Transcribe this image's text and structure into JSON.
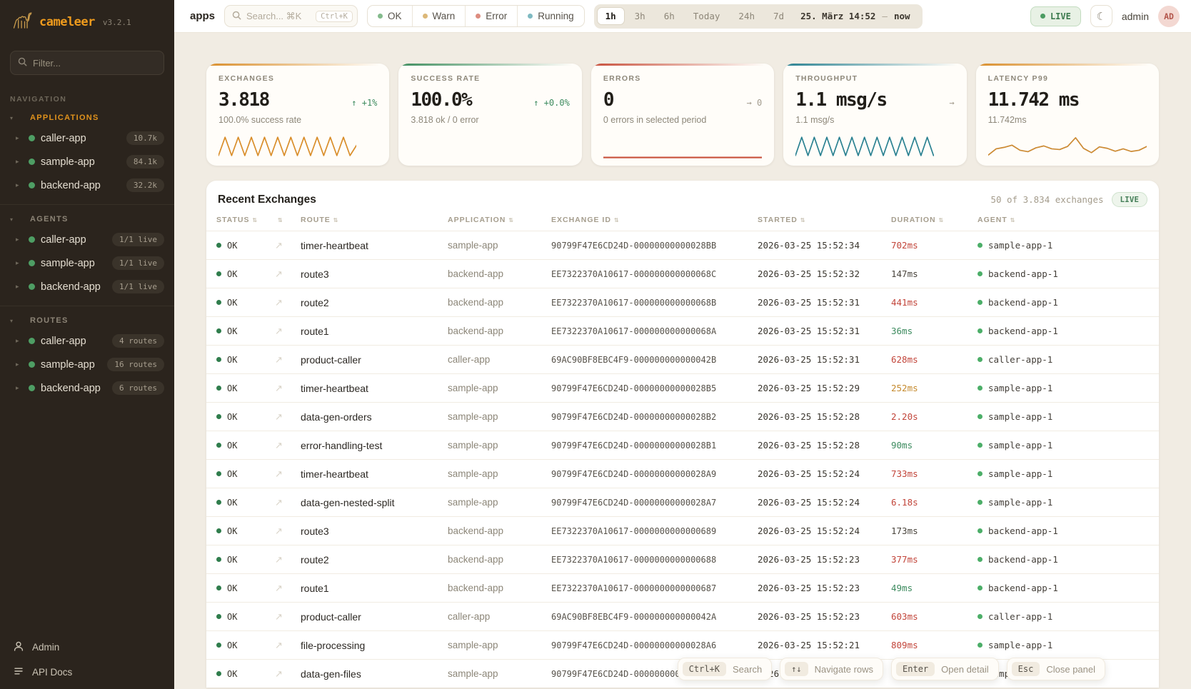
{
  "app": {
    "name": "cameleer",
    "version": "v3.2.1"
  },
  "sidebar": {
    "filter_placeholder": "Filter...",
    "nav_label": "NAVIGATION",
    "sections": [
      {
        "label": "APPLICATIONS",
        "accent": true,
        "items": [
          {
            "name": "caller-app",
            "badge": "10.7k"
          },
          {
            "name": "sample-app",
            "badge": "84.1k"
          },
          {
            "name": "backend-app",
            "badge": "32.2k"
          }
        ]
      },
      {
        "label": "AGENTS",
        "accent": false,
        "items": [
          {
            "name": "caller-app",
            "badge": "1/1 live"
          },
          {
            "name": "sample-app",
            "badge": "1/1 live"
          },
          {
            "name": "backend-app",
            "badge": "1/1 live"
          }
        ]
      },
      {
        "label": "ROUTES",
        "accent": false,
        "items": [
          {
            "name": "caller-app",
            "badge": "4 routes"
          },
          {
            "name": "sample-app",
            "badge": "16 routes"
          },
          {
            "name": "backend-app",
            "badge": "6 routes"
          }
        ]
      }
    ],
    "footer": [
      {
        "label": "Admin",
        "icon": "user-icon"
      },
      {
        "label": "API Docs",
        "icon": "docs-icon"
      }
    ]
  },
  "topbar": {
    "page_label": "apps",
    "search_placeholder": "Search... ⌘K",
    "search_kbd": "Ctrl+K",
    "status_filters": [
      {
        "label": "OK",
        "color": "#84bb8d"
      },
      {
        "label": "Warn",
        "color": "#dcb878"
      },
      {
        "label": "Error",
        "color": "#dd8d80"
      },
      {
        "label": "Running",
        "color": "#7fbac2"
      }
    ],
    "time_ranges": [
      {
        "label": "1h",
        "active": true
      },
      {
        "label": "3h",
        "active": false
      },
      {
        "label": "6h",
        "active": false
      },
      {
        "label": "Today",
        "active": false
      },
      {
        "label": "24h",
        "active": false
      },
      {
        "label": "7d",
        "active": false
      }
    ],
    "date_range": {
      "from": "25. März 14:52",
      "separator": "—",
      "to": "now"
    },
    "live_label": "LIVE",
    "moon_glyph": "☾",
    "user": "admin",
    "avatar": "AD"
  },
  "cards": [
    {
      "label": "EXCHANGES",
      "value": "3.818",
      "delta": "↑ +1%",
      "delta_color": "#3d8b5f",
      "subtitle": "100.0% success rate",
      "accent": "#d98e2b",
      "spark": {
        "color": "#d98e2b",
        "width": 1.7,
        "values": [
          12,
          88,
          12,
          88,
          12,
          88,
          12,
          88,
          12,
          88,
          12,
          88,
          12,
          88,
          12,
          88,
          12,
          88,
          12,
          88,
          12,
          55
        ]
      }
    },
    {
      "label": "SUCCESS RATE",
      "value": "100.0%",
      "delta": "↑ +0.0%",
      "delta_color": "#3d8b5f",
      "subtitle": "3.818 ok / 0 error",
      "accent": "#3f8e5f",
      "spark": null
    },
    {
      "label": "ERRORS",
      "value": "0",
      "delta": "→ 0",
      "delta_color": "#a39c8e",
      "subtitle": "0 errors in selected period",
      "accent": "#c8503c",
      "spark": {
        "color": "#c8503c",
        "width": 2.2,
        "values": [
          4,
          4
        ]
      }
    },
    {
      "label": "THROUGHPUT",
      "value": "1.1 msg/s",
      "delta": "→",
      "delta_color": "#a39c8e",
      "subtitle": "1.1 msg/s",
      "accent": "#2a8191",
      "spark": {
        "color": "#2a8191",
        "width": 1.7,
        "values": [
          12,
          88,
          12,
          88,
          12,
          88,
          12,
          88,
          12,
          88,
          12,
          88,
          12,
          88,
          12,
          88,
          12,
          88,
          12,
          88,
          12,
          88,
          12
        ]
      }
    },
    {
      "label": "LATENCY P99",
      "value": "11.742 ms",
      "delta": "",
      "delta_color": "#a39c8e",
      "subtitle": "11.742ms",
      "accent": "#d98e2b",
      "spark": {
        "color": "#cc8a33",
        "width": 1.7,
        "values": [
          14,
          40,
          46,
          55,
          34,
          28,
          44,
          52,
          40,
          37,
          50,
          86,
          42,
          24,
          48,
          42,
          30,
          40,
          29,
          34,
          50
        ]
      }
    }
  ],
  "table": {
    "title": "Recent Exchanges",
    "summary": "50 of 3.834 exchanges",
    "live_label": "LIVE",
    "columns": [
      "STATUS",
      "",
      "ROUTE",
      "APPLICATION",
      "EXCHANGE ID",
      "STARTED",
      "DURATION",
      "AGENT"
    ],
    "duration_colors": {
      "red": "#c2453a",
      "amber": "#c58a2e",
      "green": "#3d8b5f",
      "default": "#4a453d"
    },
    "rows": [
      {
        "status": "OK",
        "route": "timer-heartbeat",
        "application": "sample-app",
        "exchange_id": "90799F47E6CD24D-00000000000028BB",
        "started": "2026-03-25 15:52:34",
        "duration": "702ms",
        "duration_color": "red",
        "agent": "sample-app-1"
      },
      {
        "status": "OK",
        "route": "route3",
        "application": "backend-app",
        "exchange_id": "EE7322370A10617-000000000000068C",
        "started": "2026-03-25 15:52:32",
        "duration": "147ms",
        "duration_color": "default",
        "agent": "backend-app-1"
      },
      {
        "status": "OK",
        "route": "route2",
        "application": "backend-app",
        "exchange_id": "EE7322370A10617-000000000000068B",
        "started": "2026-03-25 15:52:31",
        "duration": "441ms",
        "duration_color": "red",
        "agent": "backend-app-1"
      },
      {
        "status": "OK",
        "route": "route1",
        "application": "backend-app",
        "exchange_id": "EE7322370A10617-000000000000068A",
        "started": "2026-03-25 15:52:31",
        "duration": "36ms",
        "duration_color": "green",
        "agent": "backend-app-1"
      },
      {
        "status": "OK",
        "route": "product-caller",
        "application": "caller-app",
        "exchange_id": "69AC90BF8EBC4F9-000000000000042B",
        "started": "2026-03-25 15:52:31",
        "duration": "628ms",
        "duration_color": "red",
        "agent": "caller-app-1"
      },
      {
        "status": "OK",
        "route": "timer-heartbeat",
        "application": "sample-app",
        "exchange_id": "90799F47E6CD24D-00000000000028B5",
        "started": "2026-03-25 15:52:29",
        "duration": "252ms",
        "duration_color": "amber",
        "agent": "sample-app-1"
      },
      {
        "status": "OK",
        "route": "data-gen-orders",
        "application": "sample-app",
        "exchange_id": "90799F47E6CD24D-00000000000028B2",
        "started": "2026-03-25 15:52:28",
        "duration": "2.20s",
        "duration_color": "red",
        "agent": "sample-app-1"
      },
      {
        "status": "OK",
        "route": "error-handling-test",
        "application": "sample-app",
        "exchange_id": "90799F47E6CD24D-00000000000028B1",
        "started": "2026-03-25 15:52:28",
        "duration": "90ms",
        "duration_color": "green",
        "agent": "sample-app-1"
      },
      {
        "status": "OK",
        "route": "timer-heartbeat",
        "application": "sample-app",
        "exchange_id": "90799F47E6CD24D-00000000000028A9",
        "started": "2026-03-25 15:52:24",
        "duration": "733ms",
        "duration_color": "red",
        "agent": "sample-app-1"
      },
      {
        "status": "OK",
        "route": "data-gen-nested-split",
        "application": "sample-app",
        "exchange_id": "90799F47E6CD24D-00000000000028A7",
        "started": "2026-03-25 15:52:24",
        "duration": "6.18s",
        "duration_color": "red",
        "agent": "sample-app-1"
      },
      {
        "status": "OK",
        "route": "route3",
        "application": "backend-app",
        "exchange_id": "EE7322370A10617-0000000000000689",
        "started": "2026-03-25 15:52:24",
        "duration": "173ms",
        "duration_color": "default",
        "agent": "backend-app-1"
      },
      {
        "status": "OK",
        "route": "route2",
        "application": "backend-app",
        "exchange_id": "EE7322370A10617-0000000000000688",
        "started": "2026-03-25 15:52:23",
        "duration": "377ms",
        "duration_color": "red",
        "agent": "backend-app-1"
      },
      {
        "status": "OK",
        "route": "route1",
        "application": "backend-app",
        "exchange_id": "EE7322370A10617-0000000000000687",
        "started": "2026-03-25 15:52:23",
        "duration": "49ms",
        "duration_color": "green",
        "agent": "backend-app-1"
      },
      {
        "status": "OK",
        "route": "product-caller",
        "application": "caller-app",
        "exchange_id": "69AC90BF8EBC4F9-000000000000042A",
        "started": "2026-03-25 15:52:23",
        "duration": "603ms",
        "duration_color": "red",
        "agent": "caller-app-1"
      },
      {
        "status": "OK",
        "route": "file-processing",
        "application": "sample-app",
        "exchange_id": "90799F47E6CD24D-00000000000028A6",
        "started": "2026-03-25 15:52:21",
        "duration": "809ms",
        "duration_color": "red",
        "agent": "sample-app-1"
      },
      {
        "status": "OK",
        "route": "data-gen-files",
        "application": "sample-app",
        "exchange_id": "90799F47E6CD24D-00000000000028A5",
        "started": "2026-03-25 1",
        "duration": "",
        "duration_color": "default",
        "agent": "sample-app-1"
      }
    ]
  },
  "shortcuts": [
    {
      "keys": "Ctrl+K",
      "label": "Search"
    },
    {
      "keys": "↑↓",
      "label": "Navigate rows"
    },
    {
      "keys": "Enter",
      "label": "Open detail"
    },
    {
      "keys": "Esc",
      "label": "Close panel"
    }
  ]
}
